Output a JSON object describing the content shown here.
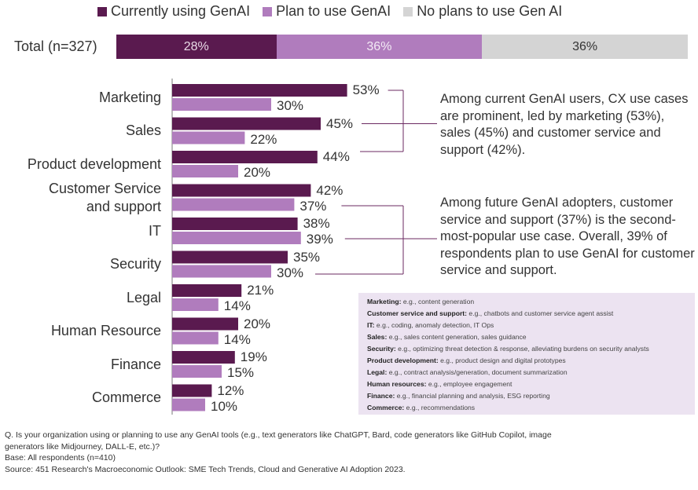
{
  "legend": [
    {
      "name": "Currently using GenAI",
      "color": "#5a1a4f"
    },
    {
      "name": "Plan to use GenAI",
      "color": "#b07cbd"
    },
    {
      "name": "No plans to use Gen AI",
      "color": "#d4d4d4"
    }
  ],
  "total": {
    "label": "Total (n=327)",
    "segments": [
      {
        "value": 28,
        "label": "28%",
        "color": "#5a1a4f",
        "text_color": "#e8d9e6"
      },
      {
        "value": 36,
        "label": "36%",
        "color": "#b07cbd",
        "text_color": "#f3eaf5"
      },
      {
        "value": 36,
        "label": "36%",
        "color": "#d4d4d4",
        "text_color": "#333333"
      }
    ]
  },
  "chart_data": {
    "type": "bar",
    "orientation": "horizontal",
    "categories": [
      "Marketing",
      "Sales",
      "Product development",
      "Customer Service and support",
      "IT",
      "Security",
      "Legal",
      "Human Resource",
      "Finance",
      "Commerce"
    ],
    "category_lines": [
      [
        "Marketing"
      ],
      [
        "Sales"
      ],
      [
        "Product development"
      ],
      [
        "Customer Service",
        "and support"
      ],
      [
        "IT"
      ],
      [
        "Security"
      ],
      [
        "Legal"
      ],
      [
        "Human Resource"
      ],
      [
        "Finance"
      ],
      [
        "Commerce"
      ]
    ],
    "series": [
      {
        "name": "Currently using GenAI",
        "color": "#5a1a4f",
        "values": [
          53,
          45,
          44,
          42,
          38,
          35,
          21,
          20,
          19,
          12
        ]
      },
      {
        "name": "Plan to use GenAI",
        "color": "#b07cbd",
        "values": [
          30,
          22,
          20,
          37,
          39,
          30,
          14,
          14,
          15,
          10
        ]
      }
    ],
    "value_suffix": "%",
    "xlim": [
      0,
      100
    ]
  },
  "callouts": [
    {
      "text": "Among current GenAI users, CX use cases are prominent, led by marketing (53%), sales (45%) and customer service and support (42%)."
    },
    {
      "text": "Among future GenAI adopters, customer service and support (37%) is the second-most-popular use case. Overall, 39% of respondents plan to use GenAI for customer service and support."
    }
  ],
  "examples": [
    {
      "term": "Marketing:",
      "desc": " e.g., content generation"
    },
    {
      "term": "Customer service and support:",
      "desc": " e.g., chatbots and customer service agent assist"
    },
    {
      "term": "IT:",
      "desc": " e.g., coding, anomaly detection, IT Ops"
    },
    {
      "term": "Sales:",
      "desc": " e.g., sales content generation, sales guidance"
    },
    {
      "term": "Security:",
      "desc": " e.g., optimizing threat detection & response, alleviating burdens on security analysts"
    },
    {
      "term": "Product development:",
      "desc": " e.g., product design and digital prototypes"
    },
    {
      "term": "Legal:",
      "desc": " e.g., contract analysis/generation, document summarization"
    },
    {
      "term": "Human resources:",
      "desc": " e.g., employee engagement"
    },
    {
      "term": "Finance:",
      "desc": " e.g., financial planning and analysis, ESG reporting"
    },
    {
      "term": "Commerce:",
      "desc": " e.g., recommendations"
    }
  ],
  "footnote": {
    "question": "Q. Is your organization using or planning to use any GenAI tools (e.g., text generators like ChatGPT, Bard, code generators like GitHub Copilot, image generators like Midjourney, DALL-E, etc.)?",
    "base": "Base: All respondents (n=410)",
    "source": "Source: 451 Research's Macroeconomic Outlook: SME Tech Trends, Cloud and Generative AI Adoption 2023."
  }
}
